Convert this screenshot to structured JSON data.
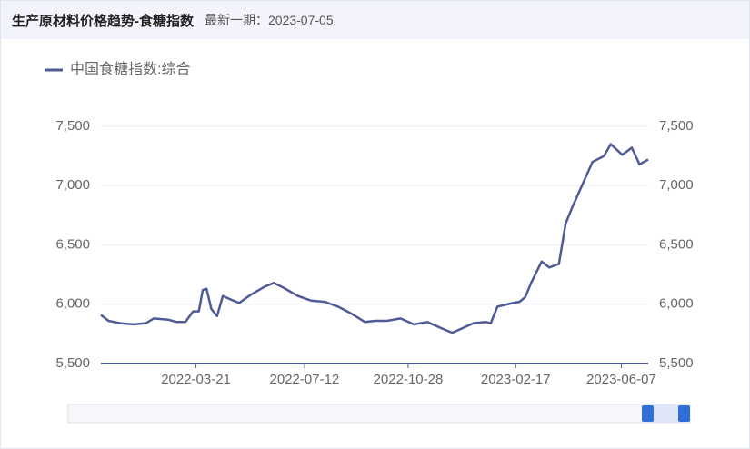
{
  "chart_data": {
    "type": "line",
    "title": "生产原材料价格趋势-食糖指数",
    "subtitle": "最新一期：2023-07-05",
    "x": [
      "2021-12-12",
      "2021-12-20",
      "2022-01-01",
      "2022-01-15",
      "2022-01-28",
      "2022-02-05",
      "2022-02-20",
      "2022-03-01",
      "2022-03-10",
      "2022-03-18",
      "2022-03-24",
      "2022-03-28",
      "2022-04-01",
      "2022-04-06",
      "2022-04-12",
      "2022-04-18",
      "2022-04-26",
      "2022-05-05",
      "2022-05-17",
      "2022-06-01",
      "2022-06-10",
      "2022-06-20",
      "2022-07-05",
      "2022-07-19",
      "2022-08-02",
      "2022-08-16",
      "2022-08-30",
      "2022-09-13",
      "2022-09-24",
      "2022-10-06",
      "2022-10-20",
      "2022-11-03",
      "2022-11-17",
      "2022-12-01",
      "2022-12-13",
      "2022-12-24",
      "2023-01-04",
      "2023-01-17",
      "2023-01-22",
      "2023-01-29",
      "2023-02-14",
      "2023-02-21",
      "2023-02-27",
      "2023-03-05",
      "2023-03-16",
      "2023-03-24",
      "2023-04-03",
      "2023-04-10",
      "2023-04-17",
      "2023-04-27",
      "2023-05-08",
      "2023-05-20",
      "2023-05-27",
      "2023-06-08",
      "2023-06-18",
      "2023-06-26",
      "2023-07-05"
    ],
    "series": [
      {
        "name": "中国食糖指数:综合",
        "color": "#4f5a96",
        "values": [
          5910,
          5860,
          5840,
          5830,
          5840,
          5880,
          5870,
          5850,
          5850,
          5940,
          5940,
          6120,
          6130,
          5960,
          5900,
          6070,
          6040,
          6010,
          6080,
          6150,
          6180,
          6140,
          6070,
          6030,
          6020,
          5980,
          5920,
          5850,
          5860,
          5860,
          5880,
          5830,
          5850,
          5800,
          5760,
          5800,
          5840,
          5850,
          5840,
          5980,
          6010,
          6020,
          6060,
          6180,
          6360,
          6310,
          6340,
          6680,
          6820,
          7000,
          7200,
          7250,
          7350,
          7260,
          7320,
          7180,
          7220
        ]
      }
    ],
    "xlim": [
      "2021-12-12",
      "2023-07-05"
    ],
    "xticks": [
      "2022-03-21",
      "2022-07-12",
      "2022-10-28",
      "2023-02-17",
      "2023-06-07"
    ],
    "ylim": [
      5500,
      7500
    ],
    "yticks": [
      {
        "value": 5500,
        "label": "5,500"
      },
      {
        "value": 6000,
        "label": "6,000"
      },
      {
        "value": 6500,
        "label": "6,500"
      },
      {
        "value": 7000,
        "label": "7,000"
      },
      {
        "value": 7500,
        "label": "7,500"
      }
    ],
    "grid": true
  }
}
